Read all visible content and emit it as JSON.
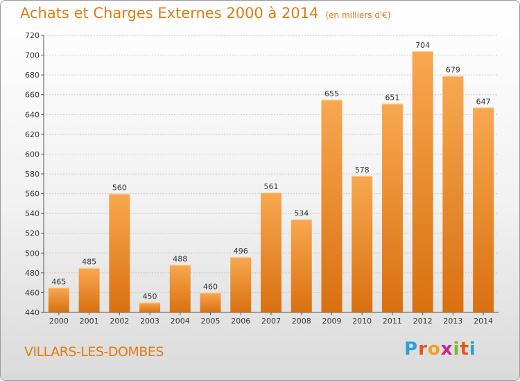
{
  "header": {
    "title": "Achats et Charges Externes 2000 à 2014",
    "unit": "(en milliers d'€)"
  },
  "footer": {
    "commune": "VILLARS-LES-DOMBES",
    "logo_letters": [
      "P",
      "r",
      "o",
      "x",
      "i",
      "t",
      "i"
    ],
    "logo_colors": [
      "#2aa0d8",
      "#e05a1c",
      "#f0a020",
      "#d02090",
      "#7ab828",
      "#e05a1c",
      "#2aa0d8"
    ]
  },
  "colors": {
    "accent": "#e07a10",
    "bar_light": "#f8a850",
    "bar_dark": "#d97010",
    "grid": "#c8c8c8"
  },
  "chart_data": {
    "type": "bar",
    "title": "Achats et Charges Externes 2000 à 2014",
    "subtitle": "(en milliers d'€)",
    "categories": [
      "2000",
      "2001",
      "2002",
      "2003",
      "2004",
      "2005",
      "2006",
      "2007",
      "2008",
      "2009",
      "2010",
      "2011",
      "2012",
      "2013",
      "2014"
    ],
    "values": [
      465,
      485,
      560,
      450,
      488,
      460,
      496,
      561,
      534,
      655,
      578,
      651,
      704,
      679,
      647
    ],
    "ylim": [
      440,
      720
    ],
    "yticks": [
      440,
      460,
      480,
      500,
      520,
      540,
      560,
      580,
      600,
      620,
      640,
      660,
      680,
      700,
      720
    ],
    "grid": true,
    "xlabel": "",
    "ylabel": ""
  }
}
